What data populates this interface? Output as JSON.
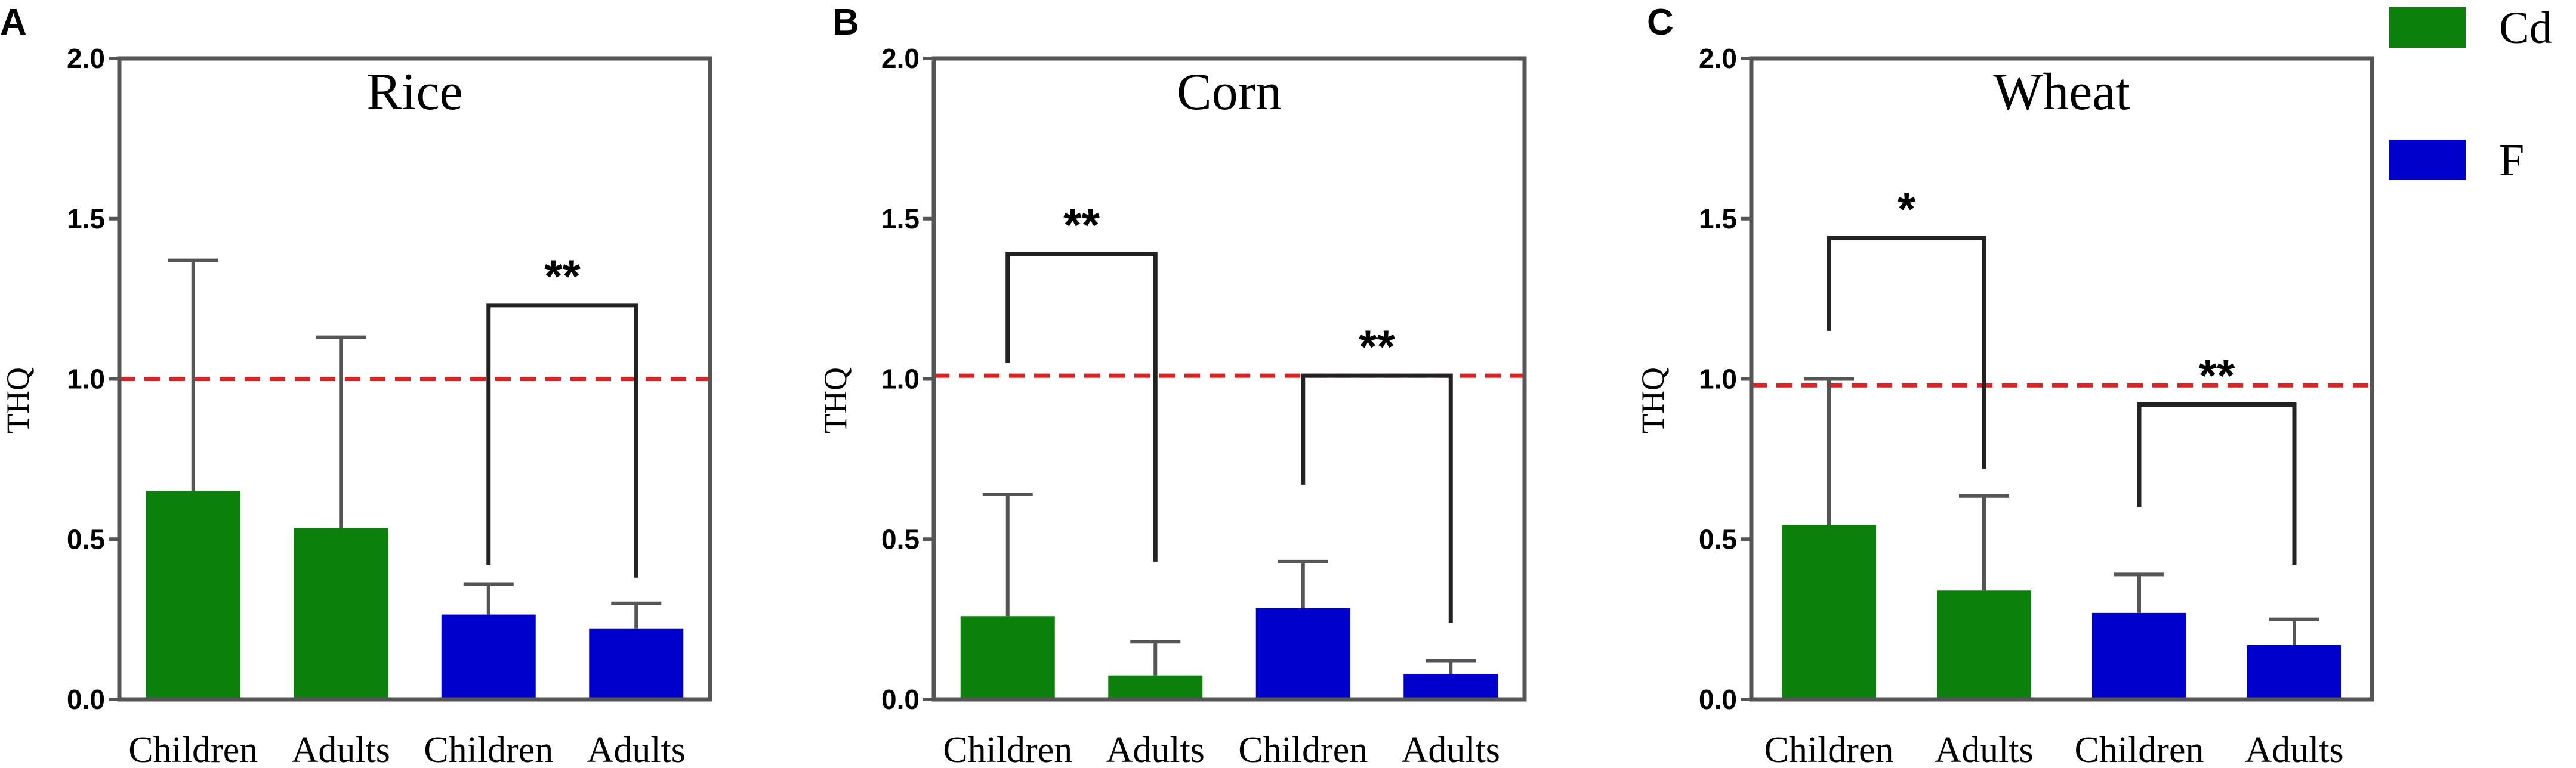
{
  "colors": {
    "cd": "#0b800b",
    "f": "#0000cc",
    "reference": "#e02020",
    "axis": "#555555"
  },
  "legend": [
    {
      "name": "Cd",
      "color": "#0b800b"
    },
    {
      "name": "F",
      "color": "#0000cc"
    }
  ],
  "chart_data": [
    {
      "panel": "A",
      "type": "bar",
      "title": "Rice",
      "ylabel": "THQ",
      "xlabel": "",
      "ylim": [
        0,
        2.0
      ],
      "yticks": [
        "0.0",
        "0.5",
        "1.0",
        "1.5",
        "2.0"
      ],
      "categories": [
        "Children",
        "Adults",
        "Children",
        "Adults"
      ],
      "series_of_bar": [
        "Cd",
        "Cd",
        "F",
        "F"
      ],
      "values": [
        0.65,
        0.535,
        0.265,
        0.22
      ],
      "error_upper": [
        1.37,
        1.13,
        0.36,
        0.3
      ],
      "reference_line": 1.0,
      "significance": [
        {
          "label": "**",
          "from": 2,
          "to": 3,
          "bracket_y": 1.23,
          "left_end": 0.42,
          "right_end": 0.38
        }
      ]
    },
    {
      "panel": "B",
      "type": "bar",
      "title": "Corn",
      "ylabel": "THQ",
      "xlabel": "",
      "ylim": [
        0,
        2.0
      ],
      "yticks": [
        "0.0",
        "0.5",
        "1.0",
        "1.5",
        "2.0"
      ],
      "categories": [
        "Children",
        "Adults",
        "Children",
        "Adults"
      ],
      "series_of_bar": [
        "Cd",
        "Cd",
        "F",
        "F"
      ],
      "values": [
        0.26,
        0.075,
        0.285,
        0.08
      ],
      "error_upper": [
        0.64,
        0.18,
        0.43,
        0.12
      ],
      "reference_line": 1.01,
      "significance": [
        {
          "label": "**",
          "from": 0,
          "to": 1,
          "bracket_y": 1.39,
          "left_end": 1.05,
          "right_end": 0.43
        },
        {
          "label": "**",
          "from": 2,
          "to": 3,
          "bracket_y": 1.01,
          "left_end": 0.67,
          "right_end": 0.24
        }
      ]
    },
    {
      "panel": "C",
      "type": "bar",
      "title": "Wheat",
      "ylabel": "THQ",
      "xlabel": "",
      "ylim": [
        0,
        2.0
      ],
      "yticks": [
        "0.0",
        "0.5",
        "1.0",
        "1.5",
        "2.0"
      ],
      "categories": [
        "Children",
        "Adults",
        "Children",
        "Adults"
      ],
      "series_of_bar": [
        "Cd",
        "Cd",
        "F",
        "F"
      ],
      "values": [
        0.545,
        0.34,
        0.27,
        0.17
      ],
      "error_upper": [
        1.0,
        0.635,
        0.39,
        0.25
      ],
      "reference_line": 0.98,
      "significance": [
        {
          "label": "*",
          "from": 0,
          "to": 1,
          "bracket_y": 1.44,
          "left_end": 1.15,
          "right_end": 0.72
        },
        {
          "label": "**",
          "from": 2,
          "to": 3,
          "bracket_y": 0.92,
          "left_end": 0.6,
          "right_end": 0.42
        }
      ]
    }
  ]
}
